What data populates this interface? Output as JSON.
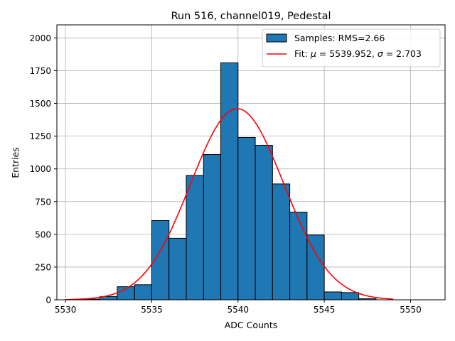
{
  "chart_data": {
    "type": "bar",
    "title": "Run 516, channel019, Pedestal",
    "xlabel": "ADC Counts",
    "ylabel": "Entries",
    "xlim": [
      5529.5,
      5552
    ],
    "ylim": [
      0,
      2100
    ],
    "xticks": [
      5530,
      5535,
      5540,
      5545,
      5550
    ],
    "yticks": [
      0,
      250,
      500,
      750,
      1000,
      1250,
      1500,
      1750,
      2000
    ],
    "grid": true,
    "legend_position": "top-right",
    "bin_edges": [
      5531,
      5532,
      5533,
      5534,
      5535,
      5536,
      5537,
      5538,
      5539,
      5540,
      5541,
      5542,
      5543,
      5544,
      5545,
      5546,
      5547,
      5548
    ],
    "counts": [
      5,
      25,
      100,
      115,
      605,
      470,
      950,
      1110,
      1810,
      1240,
      1180,
      885,
      670,
      495,
      60,
      55,
      8
    ],
    "bar_color": "#1f77b4",
    "bar_edge_color": "#000000",
    "fit": {
      "mu": 5539.952,
      "sigma": 2.703,
      "amplitude": 1460,
      "x_start": 5530,
      "x_end": 5549,
      "color": "#ff0000"
    },
    "legend": [
      {
        "label": "Samples: RMS=2.66",
        "kind": "patch"
      },
      {
        "label_prefix": "Fit: ",
        "mu_symbol": "μ",
        "mu_text": " = 5539.952, ",
        "sigma_symbol": "σ",
        "sigma_text": " = 2.703",
        "kind": "line"
      }
    ]
  }
}
